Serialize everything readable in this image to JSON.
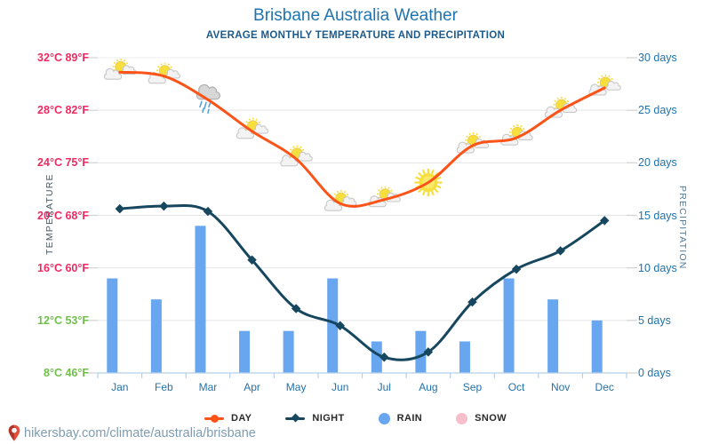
{
  "header": {
    "title": "Brisbane Australia Weather",
    "subtitle": "AVERAGE MONTHLY TEMPERATURE AND PRECIPITATION"
  },
  "axes": {
    "left_title": "TEMPERATURE",
    "right_title": "PRECIPITATION",
    "temp_ticks": [
      {
        "label": "32°C 89°F",
        "c": 32,
        "tone": "warm"
      },
      {
        "label": "28°C 82°F",
        "c": 28,
        "tone": "warm"
      },
      {
        "label": "24°C 75°F",
        "c": 24,
        "tone": "warm"
      },
      {
        "label": "20°C 68°F",
        "c": 20,
        "tone": "warm"
      },
      {
        "label": "16°C 60°F",
        "c": 16,
        "tone": "warm"
      },
      {
        "label": "12°C 53°F",
        "c": 12,
        "tone": "cool"
      },
      {
        "label": "8°C 46°F",
        "c": 8,
        "tone": "cool"
      }
    ],
    "day_ticks": [
      {
        "label": "30 days",
        "days": 30
      },
      {
        "label": "25 days",
        "days": 25
      },
      {
        "label": "20 days",
        "days": 20
      },
      {
        "label": "15 days",
        "days": 15
      },
      {
        "label": "10 days",
        "days": 10
      },
      {
        "label": "5 days",
        "days": 5
      },
      {
        "label": "0 days",
        "days": 0
      }
    ]
  },
  "chart_data": {
    "type": "mixed-line-bar",
    "categories": [
      "Jan",
      "Feb",
      "Mar",
      "Apr",
      "May",
      "Jun",
      "Jul",
      "Aug",
      "Sep",
      "Oct",
      "Nov",
      "Dec"
    ],
    "series": [
      {
        "name": "DAY",
        "type": "line",
        "axis": "temperature_c",
        "values": [
          30.9,
          30.6,
          28.8,
          26.4,
          24.3,
          20.9,
          21.2,
          22.5,
          25.3,
          25.9,
          28.0,
          29.7
        ],
        "point_icons": [
          "partly-cloudy",
          "partly-cloudy",
          "rain",
          "partly-cloudy",
          "partly-cloudy",
          "partly-cloudy",
          "partly-cloudy",
          "sunny",
          "partly-cloudy",
          "partly-cloudy",
          "partly-cloudy",
          "partly-cloudy"
        ]
      },
      {
        "name": "NIGHT",
        "type": "line",
        "axis": "temperature_c",
        "values": [
          20.5,
          20.7,
          20.3,
          16.6,
          12.9,
          11.6,
          9.2,
          9.6,
          13.4,
          15.9,
          17.3,
          19.6
        ]
      },
      {
        "name": "RAIN",
        "type": "bar",
        "axis": "precipitation_days",
        "values": [
          9,
          7,
          14,
          4,
          4,
          9,
          3,
          4,
          3,
          9,
          7,
          5
        ]
      },
      {
        "name": "SNOW",
        "type": "bar",
        "axis": "precipitation_days",
        "values": [
          0,
          0,
          0,
          0,
          0,
          0,
          0,
          0,
          0,
          0,
          0,
          0
        ]
      }
    ],
    "temp_axis": {
      "min_c": 8,
      "max_c": 32,
      "step_c": 4
    },
    "precip_axis": {
      "min_days": 0,
      "max_days": 30,
      "step_days": 5
    },
    "grid": "horizontal",
    "legend_position": "bottom"
  },
  "legend": {
    "items": [
      {
        "label": "DAY"
      },
      {
        "label": "NIGHT"
      },
      {
        "label": "RAIN"
      },
      {
        "label": "SNOW"
      }
    ]
  },
  "footer": {
    "url": "hikersbay.com/climate/australia/brisbane"
  },
  "colors": {
    "title": "#1e74b0",
    "subtitle": "#1b5a8c",
    "day_line": "#fc5318",
    "night_line": "#17475f",
    "rain_bar": "#68a6f0",
    "snow": "#f6bfcb",
    "temp_tick_warm": "#ef2a62",
    "temp_tick_cool": "#70bf4a",
    "precip_axis_text": "#2173ab",
    "month_text": "#2472a8",
    "gridline": "#e4e4e4",
    "edge_tick": "#d2d2d2",
    "x_axis": "#b3d0ea",
    "footer_text": "#7e9cb1",
    "sun": "#f6df3c",
    "cloud_light": "#f3f3f3",
    "cloud_light_edge": "#c8c8c8",
    "cloud_dark": "#d7d7d7",
    "cloud_dark_edge": "#aaaaaa",
    "raindrop": "#5aa2dd",
    "pin": "#e2503d"
  }
}
